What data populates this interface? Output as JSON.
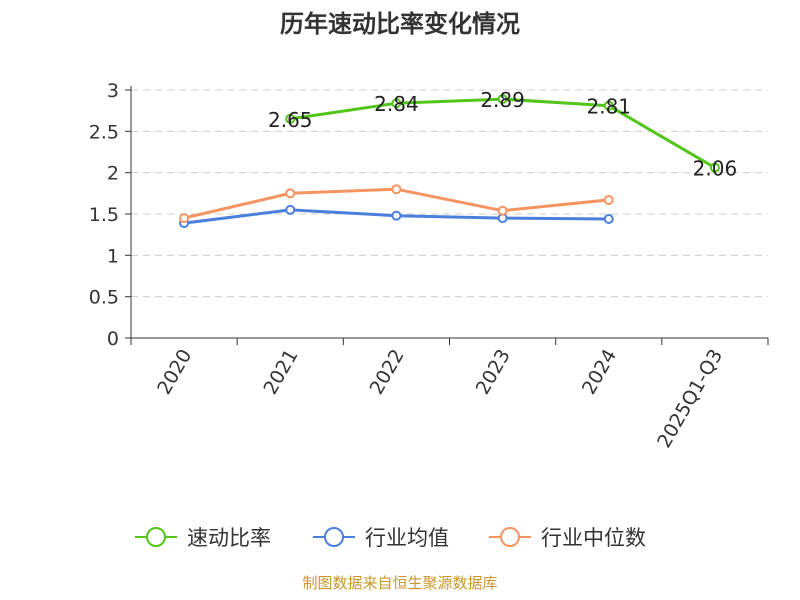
{
  "chart_data": {
    "type": "line",
    "title": "历年速动比率变化情况",
    "categories": [
      "2020",
      "2021",
      "2022",
      "2023",
      "2024",
      "2025Q1-Q3"
    ],
    "ylim": [
      0,
      3
    ],
    "yticks": [
      "0",
      "0.5",
      "1",
      "1.5",
      "2",
      "2.5",
      "3"
    ],
    "grid": true,
    "legend_position": "bottom",
    "series": [
      {
        "name": "速动比率",
        "color": "#52c41a",
        "values": [
          null,
          2.65,
          2.84,
          2.89,
          2.81,
          2.06
        ],
        "labels": [
          "",
          "2.65",
          "2.84",
          "2.89",
          "2.81",
          "2.06"
        ]
      },
      {
        "name": "行业均值",
        "color": "#4a7fdc",
        "values": [
          1.39,
          1.55,
          1.48,
          1.45,
          1.44,
          null
        ]
      },
      {
        "name": "行业中位数",
        "color": "#f59460",
        "values": [
          1.45,
          1.75,
          1.8,
          1.54,
          1.67,
          null
        ]
      }
    ],
    "source": "制图数据来自恒生聚源数据库"
  }
}
